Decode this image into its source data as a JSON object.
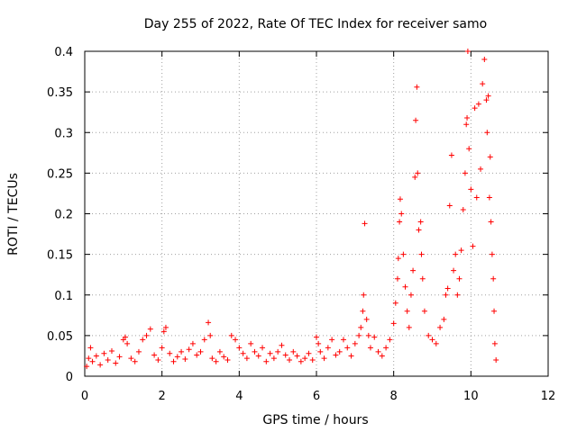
{
  "chart_data": {
    "type": "scatter",
    "title": "Day 255 of 2022, Rate Of TEC Index for receiver samo",
    "xlabel": "GPS time / hours",
    "ylabel": "ROTI / TECUs",
    "xlim": [
      0,
      12
    ],
    "ylim": [
      0,
      0.4
    ],
    "xticks": [
      "0",
      "2",
      "4",
      "6",
      "8",
      "10",
      "12"
    ],
    "yticks": [
      "0",
      "0.05",
      "0.1",
      "0.15",
      "0.2",
      "0.25",
      "0.3",
      "0.35",
      "0.4"
    ],
    "grid": true,
    "marker": "plus",
    "color": "#ff0000",
    "series": [
      {
        "points": [
          [
            0.05,
            0.012
          ],
          [
            0.1,
            0.022
          ],
          [
            0.15,
            0.035
          ],
          [
            0.2,
            0.018
          ],
          [
            0.3,
            0.025
          ],
          [
            0.4,
            0.014
          ],
          [
            0.5,
            0.028
          ],
          [
            0.6,
            0.02
          ],
          [
            0.7,
            0.031
          ],
          [
            0.8,
            0.016
          ],
          [
            0.9,
            0.024
          ],
          [
            1.0,
            0.045
          ],
          [
            1.05,
            0.048
          ],
          [
            1.1,
            0.04
          ],
          [
            1.2,
            0.022
          ],
          [
            1.3,
            0.018
          ],
          [
            1.4,
            0.03
          ],
          [
            1.5,
            0.045
          ],
          [
            1.6,
            0.05
          ],
          [
            1.7,
            0.058
          ],
          [
            1.8,
            0.026
          ],
          [
            1.9,
            0.02
          ],
          [
            2.0,
            0.035
          ],
          [
            2.05,
            0.055
          ],
          [
            2.1,
            0.06
          ],
          [
            2.2,
            0.028
          ],
          [
            2.3,
            0.018
          ],
          [
            2.4,
            0.024
          ],
          [
            2.5,
            0.03
          ],
          [
            2.6,
            0.021
          ],
          [
            2.7,
            0.033
          ],
          [
            2.8,
            0.04
          ],
          [
            2.9,
            0.026
          ],
          [
            3.0,
            0.03
          ],
          [
            3.1,
            0.045
          ],
          [
            3.2,
            0.066
          ],
          [
            3.25,
            0.05
          ],
          [
            3.3,
            0.022
          ],
          [
            3.4,
            0.018
          ],
          [
            3.5,
            0.03
          ],
          [
            3.6,
            0.024
          ],
          [
            3.7,
            0.02
          ],
          [
            3.8,
            0.05
          ],
          [
            3.9,
            0.045
          ],
          [
            4.0,
            0.035
          ],
          [
            4.1,
            0.028
          ],
          [
            4.2,
            0.022
          ],
          [
            4.3,
            0.04
          ],
          [
            4.4,
            0.03
          ],
          [
            4.5,
            0.025
          ],
          [
            4.6,
            0.035
          ],
          [
            4.7,
            0.018
          ],
          [
            4.8,
            0.028
          ],
          [
            4.9,
            0.022
          ],
          [
            5.0,
            0.03
          ],
          [
            5.1,
            0.038
          ],
          [
            5.2,
            0.026
          ],
          [
            5.3,
            0.02
          ],
          [
            5.4,
            0.03
          ],
          [
            5.5,
            0.025
          ],
          [
            5.6,
            0.018
          ],
          [
            5.7,
            0.022
          ],
          [
            5.8,
            0.028
          ],
          [
            5.9,
            0.02
          ],
          [
            6.0,
            0.048
          ],
          [
            6.05,
            0.04
          ],
          [
            6.1,
            0.03
          ],
          [
            6.2,
            0.022
          ],
          [
            6.3,
            0.035
          ],
          [
            6.4,
            0.045
          ],
          [
            6.5,
            0.026
          ],
          [
            6.6,
            0.03
          ],
          [
            6.7,
            0.045
          ],
          [
            6.8,
            0.035
          ],
          [
            6.9,
            0.025
          ],
          [
            7.0,
            0.04
          ],
          [
            7.1,
            0.05
          ],
          [
            7.15,
            0.06
          ],
          [
            7.2,
            0.08
          ],
          [
            7.22,
            0.1
          ],
          [
            7.25,
            0.188
          ],
          [
            7.3,
            0.07
          ],
          [
            7.35,
            0.05
          ],
          [
            7.4,
            0.035
          ],
          [
            7.5,
            0.048
          ],
          [
            7.6,
            0.03
          ],
          [
            7.7,
            0.025
          ],
          [
            7.8,
            0.035
          ],
          [
            7.9,
            0.045
          ],
          [
            8.0,
            0.065
          ],
          [
            8.05,
            0.09
          ],
          [
            8.1,
            0.12
          ],
          [
            8.12,
            0.145
          ],
          [
            8.15,
            0.19
          ],
          [
            8.17,
            0.218
          ],
          [
            8.2,
            0.2
          ],
          [
            8.25,
            0.15
          ],
          [
            8.3,
            0.11
          ],
          [
            8.35,
            0.08
          ],
          [
            8.4,
            0.06
          ],
          [
            8.45,
            0.1
          ],
          [
            8.5,
            0.13
          ],
          [
            8.55,
            0.245
          ],
          [
            8.57,
            0.315
          ],
          [
            8.6,
            0.356
          ],
          [
            8.62,
            0.25
          ],
          [
            8.65,
            0.18
          ],
          [
            8.7,
            0.19
          ],
          [
            8.72,
            0.15
          ],
          [
            8.75,
            0.12
          ],
          [
            8.8,
            0.08
          ],
          [
            8.9,
            0.05
          ],
          [
            9.0,
            0.045
          ],
          [
            9.1,
            0.04
          ],
          [
            9.2,
            0.06
          ],
          [
            9.3,
            0.07
          ],
          [
            9.35,
            0.1
          ],
          [
            9.4,
            0.108
          ],
          [
            9.45,
            0.21
          ],
          [
            9.5,
            0.272
          ],
          [
            9.55,
            0.13
          ],
          [
            9.6,
            0.15
          ],
          [
            9.65,
            0.1
          ],
          [
            9.7,
            0.12
          ],
          [
            9.75,
            0.155
          ],
          [
            9.8,
            0.205
          ],
          [
            9.85,
            0.25
          ],
          [
            9.88,
            0.31
          ],
          [
            9.9,
            0.318
          ],
          [
            9.92,
            0.4
          ],
          [
            9.95,
            0.28
          ],
          [
            10.0,
            0.23
          ],
          [
            10.05,
            0.16
          ],
          [
            10.1,
            0.33
          ],
          [
            10.15,
            0.22
          ],
          [
            10.2,
            0.335
          ],
          [
            10.25,
            0.255
          ],
          [
            10.3,
            0.36
          ],
          [
            10.35,
            0.39
          ],
          [
            10.4,
            0.34
          ],
          [
            10.42,
            0.3
          ],
          [
            10.45,
            0.345
          ],
          [
            10.48,
            0.22
          ],
          [
            10.5,
            0.27
          ],
          [
            10.52,
            0.19
          ],
          [
            10.55,
            0.15
          ],
          [
            10.58,
            0.12
          ],
          [
            10.6,
            0.08
          ],
          [
            10.62,
            0.04
          ],
          [
            10.65,
            0.02
          ]
        ]
      }
    ]
  }
}
